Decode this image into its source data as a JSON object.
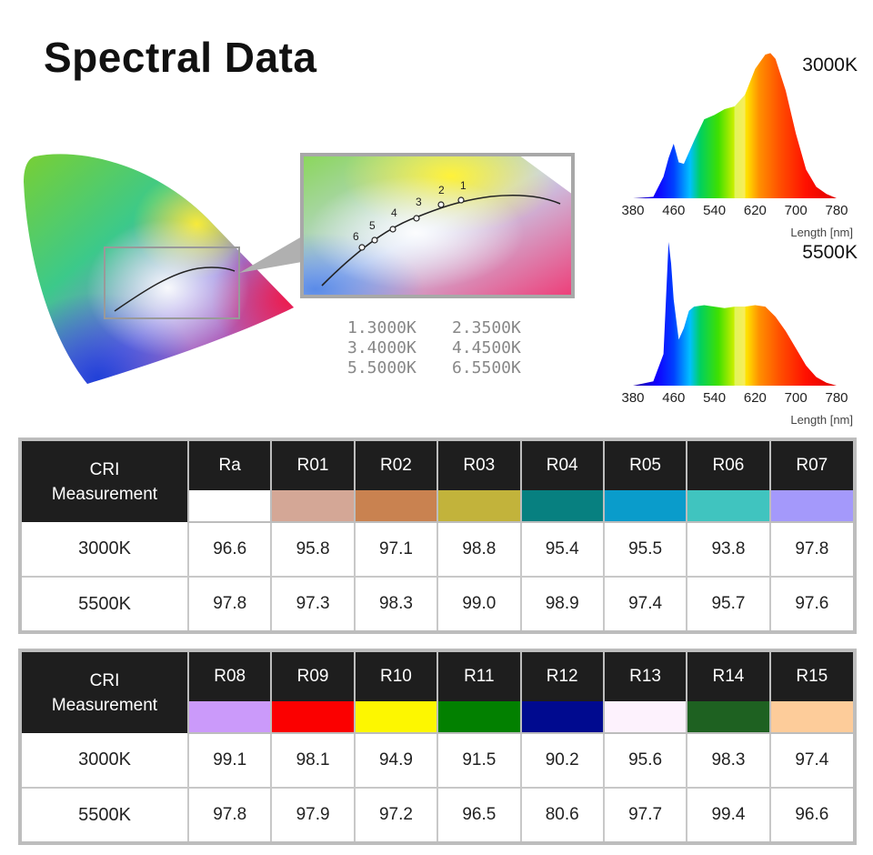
{
  "title": "Spectral Data",
  "cie_legend": [
    [
      "1.3000K",
      "2.3500K"
    ],
    [
      "3.4000K",
      "4.4500K"
    ],
    [
      "5.5000K",
      "6.5500K"
    ]
  ],
  "zoom_points": [
    "1",
    "2",
    "3",
    "4",
    "5",
    "6"
  ],
  "spectra": [
    {
      "label": "3000K",
      "x_ticks": [
        "380",
        "460",
        "540",
        "620",
        "700",
        "780"
      ],
      "x_unit": "Length [nm]"
    },
    {
      "label": "5500K",
      "x_ticks": [
        "380",
        "460",
        "540",
        "620",
        "700",
        "780"
      ],
      "x_unit": "Length [nm]"
    }
  ],
  "chart_data": [
    {
      "type": "area",
      "title": "3000K",
      "xlabel": "Length [nm]",
      "xlim": [
        380,
        780
      ],
      "x": [
        380,
        420,
        440,
        450,
        460,
        470,
        480,
        500,
        520,
        540,
        560,
        580,
        600,
        620,
        640,
        650,
        660,
        680,
        700,
        720,
        740,
        760,
        780
      ],
      "values": [
        0,
        1,
        15,
        28,
        38,
        25,
        24,
        40,
        55,
        58,
        62,
        64,
        72,
        90,
        100,
        101,
        97,
        75,
        45,
        20,
        8,
        3,
        0
      ]
    },
    {
      "type": "area",
      "title": "5500K",
      "xlabel": "Length [nm]",
      "xlim": [
        380,
        780
      ],
      "x": [
        380,
        420,
        440,
        450,
        455,
        460,
        470,
        480,
        490,
        500,
        520,
        540,
        560,
        580,
        600,
        620,
        640,
        660,
        680,
        700,
        720,
        740,
        760,
        780
      ],
      "values": [
        0,
        3,
        22,
        100,
        85,
        60,
        32,
        40,
        52,
        55,
        56,
        55,
        54,
        55,
        55,
        56,
        55,
        48,
        38,
        26,
        14,
        6,
        2,
        0
      ]
    },
    {
      "type": "table",
      "columns": [
        "Ra",
        "R01",
        "R02",
        "R03",
        "R04",
        "R05",
        "R06",
        "R07"
      ],
      "rows": [
        {
          "label": "3000K",
          "values": [
            "96.6",
            "95.8",
            "97.1",
            "98.8",
            "95.4",
            "95.5",
            "93.8",
            "97.8"
          ]
        },
        {
          "label": "5500K",
          "values": [
            "97.8",
            "97.3",
            "98.3",
            "99.0",
            "98.9",
            "97.4",
            "95.7",
            "97.6"
          ]
        }
      ]
    },
    {
      "type": "table",
      "columns": [
        "R08",
        "R09",
        "R10",
        "R11",
        "R12",
        "R13",
        "R14",
        "R15"
      ],
      "rows": [
        {
          "label": "3000K",
          "values": [
            "99.1",
            "98.1",
            "94.9",
            "91.5",
            "90.2",
            "95.6",
            "98.3",
            "97.4"
          ]
        },
        {
          "label": "5500K",
          "values": [
            "97.8",
            "97.9",
            "97.2",
            "96.5",
            "80.6",
            "97.7",
            "99.4",
            "96.6"
          ]
        }
      ]
    }
  ],
  "tables": [
    {
      "header_line1": "CRI",
      "header_line2": "Measurement",
      "columns": [
        "Ra",
        "R01",
        "R02",
        "R03",
        "R04",
        "R05",
        "R06",
        "R07"
      ],
      "swatches": [
        "#ffffff",
        "#d4a796",
        "#c98250",
        "#c2b33b",
        "#078080",
        "#0a9ccb",
        "#40c4bf",
        "#a499fb"
      ],
      "rows": [
        {
          "label": "3000K",
          "values": [
            "96.6",
            "95.8",
            "97.1",
            "98.8",
            "95.4",
            "95.5",
            "93.8",
            "97.8"
          ]
        },
        {
          "label": "5500K",
          "values": [
            "97.8",
            "97.3",
            "98.3",
            "99.0",
            "98.9",
            "97.4",
            "95.7",
            "97.6"
          ]
        }
      ]
    },
    {
      "header_line1": "CRI",
      "header_line2": "Measurement",
      "columns": [
        "R08",
        "R09",
        "R10",
        "R11",
        "R12",
        "R13",
        "R14",
        "R15"
      ],
      "swatches": [
        "#cb9afa",
        "#fb0000",
        "#fdf700",
        "#028000",
        "#000a8f",
        "#fdf2fd",
        "#1e6121",
        "#fdcc9a"
      ],
      "rows": [
        {
          "label": "3000K",
          "values": [
            "99.1",
            "98.1",
            "94.9",
            "91.5",
            "90.2",
            "95.6",
            "98.3",
            "97.4"
          ]
        },
        {
          "label": "5500K",
          "values": [
            "97.8",
            "97.9",
            "97.2",
            "96.5",
            "80.6",
            "97.7",
            "99.4",
            "96.6"
          ]
        }
      ]
    }
  ]
}
